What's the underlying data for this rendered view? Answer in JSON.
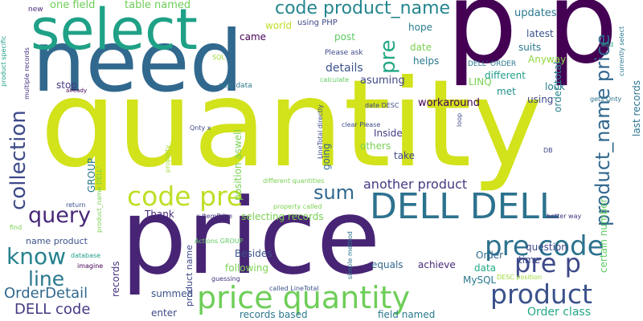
{
  "palette": {
    "dark_purple": "#440154",
    "indigo": "#46327e",
    "blue": "#365c8d",
    "steel_blue": "#277f8e",
    "teal": "#1fa187",
    "green": "#4ac16d",
    "yellow_green": "#a0da39",
    "yellow": "#fde725"
  },
  "words": [
    {
      "text": "quantity",
      "color": "#d2e21b"
    },
    {
      "text": "price",
      "color": "#482475"
    },
    {
      "text": "need",
      "color": "#31688e"
    },
    {
      "text": "p",
      "color": "#440154"
    },
    {
      "text": "p",
      "color": "#440154"
    },
    {
      "text": "select",
      "color": "#1fa187"
    },
    {
      "text": "DELL DELL",
      "color": "#2c728e"
    },
    {
      "text": "code pre",
      "color": "#bddf26"
    },
    {
      "text": "price quantity",
      "color": "#6ece58"
    },
    {
      "text": "pre code",
      "color": "#2c728e"
    },
    {
      "text": "product",
      "color": "#3b528b"
    },
    {
      "text": "pre p",
      "color": "#3e4989"
    },
    {
      "text": "product_name price",
      "color": "#31688e"
    },
    {
      "text": "collection",
      "color": "#3e4989"
    },
    {
      "text": "query",
      "color": "#482878"
    },
    {
      "text": "know",
      "color": "#26828e"
    },
    {
      "text": "line",
      "color": "#2a788e"
    },
    {
      "text": "sum",
      "color": "#31688e"
    },
    {
      "text": "pre",
      "color": "#22a884"
    },
    {
      "text": "code product_name",
      "color": "#24868e"
    },
    {
      "text": "OrderDetail",
      "color": "#31688e"
    },
    {
      "text": "DELL code",
      "color": "#443a83"
    },
    {
      "text": "another product",
      "color": "#443a83"
    },
    {
      "text": "one field",
      "color": "#6ece58"
    },
    {
      "text": "table named",
      "color": "#6ece58"
    },
    {
      "text": "updates",
      "color": "#2a788e"
    },
    {
      "text": "world",
      "color": "#bddf26"
    },
    {
      "text": "using PHP",
      "color": "#3e4989"
    },
    {
      "text": "hope",
      "color": "#287c8e"
    },
    {
      "text": "came",
      "color": "#440154"
    },
    {
      "text": "post",
      "color": "#5ec962"
    },
    {
      "text": "date",
      "color": "#7ad151"
    },
    {
      "text": "suits",
      "color": "#2a788e"
    },
    {
      "text": "latest",
      "color": "#3b528b"
    },
    {
      "text": "Anyway",
      "color": "#90d743"
    },
    {
      "text": "helps",
      "color": "#2a788e"
    },
    {
      "text": "details",
      "color": "#3b528b"
    },
    {
      "text": "asuming",
      "color": "#3e4989"
    },
    {
      "text": "stop",
      "color": "#443a83"
    },
    {
      "text": "LINQ",
      "color": "#7ad151"
    },
    {
      "text": "different",
      "color": "#1f9e89"
    },
    {
      "text": "look",
      "color": "#277f8e"
    },
    {
      "text": "met",
      "color": "#21918c"
    },
    {
      "text": "using",
      "color": "#3e4989"
    },
    {
      "text": "workaround",
      "color": "#440154"
    },
    {
      "text": "Inside",
      "color": "#433e85"
    },
    {
      "text": "others",
      "color": "#7ad151"
    },
    {
      "text": "take",
      "color": "#3e4989"
    },
    {
      "text": "order total",
      "color": "#26828e"
    },
    {
      "text": "Thank",
      "color": "#482878"
    },
    {
      "text": "selecting records",
      "color": "#7ad151"
    },
    {
      "text": "name product",
      "color": "#3b528b"
    },
    {
      "text": "Besides",
      "color": "#3b528b"
    },
    {
      "text": "following",
      "color": "#7ad151"
    },
    {
      "text": "Order",
      "color": "#31688e"
    },
    {
      "text": "time",
      "color": "#3e4989"
    },
    {
      "text": "question",
      "color": "#3e4989"
    },
    {
      "text": "equals",
      "color": "#31688e"
    },
    {
      "text": "achieve",
      "color": "#482878"
    },
    {
      "text": "data",
      "color": "#22a884"
    },
    {
      "text": "MySQL",
      "color": "#2a788e"
    },
    {
      "text": "summed",
      "color": "#3b528b"
    },
    {
      "text": "enter",
      "color": "#3e4989"
    },
    {
      "text": "records based",
      "color": "#2a788e"
    },
    {
      "text": "field named",
      "color": "#2a788e"
    },
    {
      "text": "Order class",
      "color": "#22a884"
    },
    {
      "text": "records",
      "color": "#46327e"
    },
    {
      "text": "GROUP",
      "color": "#2a788e"
    },
    {
      "text": "going",
      "color": "#31688e"
    },
    {
      "text": "position aswell",
      "color": "#7ad151"
    },
    {
      "text": "certain number",
      "color": "#5ec962"
    },
    {
      "text": "last records",
      "color": "#2c728e"
    },
    {
      "text": "product name",
      "color": "#3e4989"
    },
    {
      "text": "new",
      "color": "#482878"
    },
    {
      "text": "SQL",
      "color": "#a0da39"
    },
    {
      "text": "Please ask",
      "color": "#3e4989"
    },
    {
      "text": "DELL' ORDER",
      "color": "#2a788e"
    },
    {
      "text": "calculate",
      "color": "#5ec962"
    },
    {
      "text": "new data",
      "color": "#2a788e"
    },
    {
      "text": "already",
      "color": "#440154"
    },
    {
      "text": "clear Please",
      "color": "#3e4989"
    },
    {
      "text": "date DESC",
      "color": "#3e4989"
    },
    {
      "text": "Qnty x",
      "color": "#3e4989"
    },
    {
      "text": "different quantities",
      "color": "#7ad151"
    },
    {
      "text": "property called",
      "color": "#7ad151"
    },
    {
      "text": "x ItemPrice",
      "color": "#46327e"
    },
    {
      "text": "Actions GROUP",
      "color": "#5ec962"
    },
    {
      "text": "simple method",
      "color": "#2c728e"
    },
    {
      "text": "guessing",
      "color": "#46327e"
    },
    {
      "text": "called LineTotal",
      "color": "#3b528b"
    },
    {
      "text": "DESC position",
      "color": "#a0da39"
    },
    {
      "text": "better way",
      "color": "#46327e"
    },
    {
      "text": "DB",
      "color": "#3e4989"
    },
    {
      "text": "gets Qnty",
      "color": "#2c728e"
    },
    {
      "text": "return",
      "color": "#3b528b"
    },
    {
      "text": "find",
      "color": "#7ad151"
    },
    {
      "text": "database",
      "color": "#1f9e89"
    },
    {
      "text": "imagine",
      "color": "#440154"
    },
    {
      "text": "add",
      "color": "#22a884"
    },
    {
      "text": "product specific",
      "color": "#1f9e89"
    },
    {
      "text": "multiple records",
      "color": "#46327e"
    },
    {
      "text": "product_name DELL'",
      "color": "#7ad151"
    },
    {
      "text": "LineTotal directly",
      "color": "#3e4989"
    },
    {
      "text": "loop",
      "color": "#3e4989"
    },
    {
      "text": "currently select",
      "color": "#2a788e"
    },
    {
      "text": "property",
      "color": "#a0da39"
    }
  ]
}
